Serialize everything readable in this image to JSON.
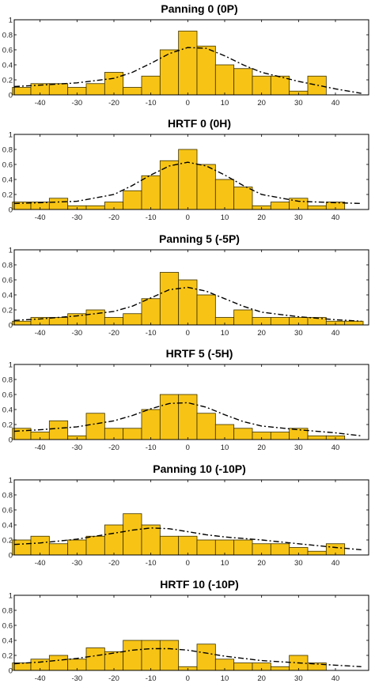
{
  "style": {
    "bar_color": "#F7C416",
    "bar_edge": "#3a3000",
    "line_color": "#000000"
  },
  "chart_data": [
    {
      "type": "bar",
      "title": "Panning 0 (0P)",
      "bin_centers": [
        -45,
        -40,
        -35,
        -30,
        -25,
        -20,
        -15,
        -10,
        -5,
        0,
        5,
        10,
        15,
        20,
        25,
        30,
        35,
        40,
        45
      ],
      "values": [
        0.1,
        0.15,
        0.15,
        0.1,
        0.15,
        0.3,
        0.1,
        0.25,
        0.6,
        0.85,
        0.65,
        0.4,
        0.35,
        0.25,
        0.25,
        0.05,
        0.25,
        0.0,
        0.0
      ],
      "fit_curve": {
        "x": [
          -47,
          -40,
          -30,
          -20,
          -15,
          -10,
          -5,
          0,
          5,
          10,
          15,
          20,
          30,
          40,
          47
        ],
        "y": [
          0.11,
          0.13,
          0.16,
          0.22,
          0.3,
          0.42,
          0.55,
          0.63,
          0.62,
          0.52,
          0.4,
          0.3,
          0.18,
          0.08,
          0.02
        ]
      },
      "xlim": [
        -47,
        49
      ],
      "ylim": [
        0,
        1
      ],
      "xticks": [
        -40,
        -30,
        -20,
        -10,
        0,
        10,
        20,
        30,
        40
      ],
      "yticks": [
        0,
        0.2,
        0.4,
        0.6,
        0.8,
        1
      ],
      "xtick_labels": [
        "-40",
        "-30",
        "-20",
        "-10",
        "0",
        "10",
        "20",
        "30",
        "40"
      ],
      "ytick_labels": [
        "0",
        "0.2",
        "0.4",
        "0.6",
        "0.8",
        "1"
      ]
    },
    {
      "type": "bar",
      "title": "HRTF 0 (0H)",
      "bin_centers": [
        -45,
        -40,
        -35,
        -30,
        -25,
        -20,
        -15,
        -10,
        -5,
        0,
        5,
        10,
        15,
        20,
        25,
        30,
        35,
        40,
        45
      ],
      "values": [
        0.1,
        0.1,
        0.15,
        0.05,
        0.05,
        0.1,
        0.25,
        0.45,
        0.65,
        0.8,
        0.6,
        0.4,
        0.3,
        0.05,
        0.1,
        0.15,
        0.05,
        0.1,
        0.0
      ],
      "fit_curve": {
        "x": [
          -47,
          -40,
          -30,
          -20,
          -15,
          -10,
          -5,
          0,
          5,
          10,
          15,
          20,
          30,
          40,
          47
        ],
        "y": [
          0.08,
          0.09,
          0.11,
          0.2,
          0.32,
          0.46,
          0.58,
          0.63,
          0.58,
          0.46,
          0.32,
          0.2,
          0.11,
          0.09,
          0.08
        ]
      },
      "xlim": [
        -47,
        49
      ],
      "ylim": [
        0,
        1
      ],
      "xticks": [
        -40,
        -30,
        -20,
        -10,
        0,
        10,
        20,
        30,
        40
      ],
      "yticks": [
        0,
        0.2,
        0.4,
        0.6,
        0.8,
        1
      ],
      "xtick_labels": [
        "-40",
        "-30",
        "-20",
        "-10",
        "0",
        "10",
        "20",
        "30",
        "40"
      ],
      "ytick_labels": [
        "0",
        "0.2",
        "0.4",
        "0.6",
        "0.8",
        "1"
      ]
    },
    {
      "type": "bar",
      "title": "Panning 5 (-5P)",
      "bin_centers": [
        -45,
        -40,
        -35,
        -30,
        -25,
        -20,
        -15,
        -10,
        -5,
        0,
        5,
        10,
        15,
        20,
        25,
        30,
        35,
        40,
        45
      ],
      "values": [
        0.05,
        0.1,
        0.1,
        0.15,
        0.2,
        0.1,
        0.15,
        0.35,
        0.7,
        0.6,
        0.4,
        0.1,
        0.2,
        0.1,
        0.1,
        0.1,
        0.1,
        0.05,
        0.05
      ],
      "fit_curve": {
        "x": [
          -47,
          -40,
          -30,
          -20,
          -15,
          -10,
          -5,
          0,
          5,
          10,
          15,
          20,
          30,
          40,
          47
        ],
        "y": [
          0.06,
          0.08,
          0.12,
          0.18,
          0.25,
          0.36,
          0.47,
          0.5,
          0.45,
          0.35,
          0.25,
          0.17,
          0.11,
          0.07,
          0.05
        ]
      },
      "xlim": [
        -47,
        49
      ],
      "ylim": [
        0,
        1
      ],
      "xticks": [
        -40,
        -30,
        -20,
        -10,
        0,
        10,
        20,
        30,
        40
      ],
      "yticks": [
        0,
        0.2,
        0.4,
        0.6,
        0.8,
        1
      ],
      "xtick_labels": [
        "-40",
        "-30",
        "-20",
        "-10",
        "0",
        "10",
        "20",
        "30",
        "40"
      ],
      "ytick_labels": [
        "0",
        "0.2",
        "0.4",
        "0.6",
        "0.8",
        "1"
      ]
    },
    {
      "type": "bar",
      "title": "HRTF 5 (-5H)",
      "bin_centers": [
        -45,
        -40,
        -35,
        -30,
        -25,
        -20,
        -15,
        -10,
        -5,
        0,
        5,
        10,
        15,
        20,
        25,
        30,
        35,
        40,
        45
      ],
      "values": [
        0.15,
        0.1,
        0.25,
        0.05,
        0.35,
        0.15,
        0.15,
        0.4,
        0.6,
        0.6,
        0.35,
        0.2,
        0.15,
        0.1,
        0.1,
        0.15,
        0.05,
        0.05,
        0.0
      ],
      "fit_curve": {
        "x": [
          -47,
          -40,
          -30,
          -20,
          -15,
          -10,
          -5,
          0,
          5,
          10,
          15,
          20,
          30,
          40,
          47
        ],
        "y": [
          0.11,
          0.13,
          0.17,
          0.25,
          0.32,
          0.41,
          0.48,
          0.49,
          0.43,
          0.33,
          0.24,
          0.18,
          0.13,
          0.09,
          0.05
        ]
      },
      "xlim": [
        -47,
        49
      ],
      "ylim": [
        0,
        1
      ],
      "xticks": [
        -40,
        -30,
        -20,
        -10,
        0,
        10,
        20,
        30,
        40
      ],
      "yticks": [
        0,
        0.2,
        0.4,
        0.6,
        0.8,
        1
      ],
      "xtick_labels": [
        "-40",
        "-30",
        "-20",
        "-10",
        "0",
        "10",
        "20",
        "30",
        "40"
      ],
      "ytick_labels": [
        "0",
        "0.2",
        "0.4",
        "0.6",
        "0.8",
        "1"
      ]
    },
    {
      "type": "bar",
      "title": "Panning 10 (-10P)",
      "bin_centers": [
        -45,
        -40,
        -35,
        -30,
        -25,
        -20,
        -15,
        -10,
        -5,
        0,
        5,
        10,
        15,
        20,
        25,
        30,
        35,
        40,
        45
      ],
      "values": [
        0.2,
        0.25,
        0.15,
        0.2,
        0.25,
        0.4,
        0.55,
        0.4,
        0.25,
        0.25,
        0.2,
        0.2,
        0.2,
        0.15,
        0.15,
        0.1,
        0.05,
        0.15,
        0.0
      ],
      "fit_curve": {
        "x": [
          -47,
          -40,
          -30,
          -20,
          -15,
          -10,
          -5,
          0,
          5,
          10,
          15,
          20,
          30,
          40,
          47
        ],
        "y": [
          0.14,
          0.16,
          0.21,
          0.29,
          0.33,
          0.36,
          0.35,
          0.31,
          0.27,
          0.24,
          0.22,
          0.2,
          0.15,
          0.1,
          0.07
        ]
      },
      "xlim": [
        -47,
        49
      ],
      "ylim": [
        0,
        1
      ],
      "xticks": [
        -40,
        -30,
        -20,
        -10,
        0,
        10,
        20,
        30,
        40
      ],
      "yticks": [
        0,
        0.2,
        0.4,
        0.6,
        0.8,
        1
      ],
      "xtick_labels": [
        "-40",
        "-30",
        "-20",
        "-10",
        "0",
        "10",
        "20",
        "30",
        "40"
      ],
      "ytick_labels": [
        "0",
        "0.2",
        "0.4",
        "0.6",
        "0.8",
        "1"
      ]
    },
    {
      "type": "bar",
      "title": "HRTF 10 (-10P)",
      "bin_centers": [
        -45,
        -40,
        -35,
        -30,
        -25,
        -20,
        -15,
        -10,
        -5,
        0,
        5,
        10,
        15,
        20,
        25,
        30,
        35,
        40,
        45
      ],
      "values": [
        0.1,
        0.15,
        0.2,
        0.15,
        0.3,
        0.25,
        0.4,
        0.4,
        0.4,
        0.05,
        0.35,
        0.15,
        0.1,
        0.1,
        0.05,
        0.2,
        0.1,
        0.0,
        0.0
      ],
      "fit_curve": {
        "x": [
          -47,
          -40,
          -30,
          -20,
          -15,
          -10,
          -5,
          0,
          5,
          10,
          15,
          20,
          30,
          40,
          47
        ],
        "y": [
          0.09,
          0.11,
          0.16,
          0.23,
          0.27,
          0.29,
          0.29,
          0.27,
          0.23,
          0.19,
          0.16,
          0.13,
          0.1,
          0.07,
          0.05
        ]
      },
      "xlim": [
        -47,
        49
      ],
      "ylim": [
        0,
        1
      ],
      "xticks": [
        -40,
        -30,
        -20,
        -10,
        0,
        10,
        20,
        30,
        40
      ],
      "yticks": [
        0,
        0.2,
        0.4,
        0.6,
        0.8,
        1
      ],
      "xtick_labels": [
        "-40",
        "-30",
        "-20",
        "-10",
        "0",
        "10",
        "20",
        "30",
        "40"
      ],
      "ytick_labels": [
        "0",
        "0.2",
        "0.4",
        "0.6",
        "0.8",
        "1"
      ]
    }
  ]
}
